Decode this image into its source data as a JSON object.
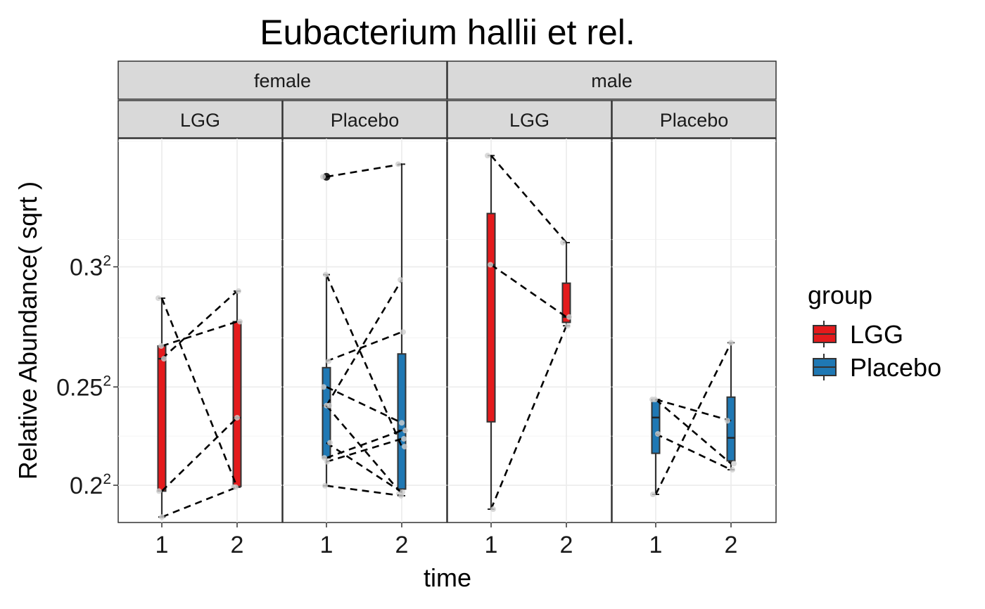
{
  "chart_data": {
    "type": "boxplot",
    "title": "Eubacterium hallii et rel.",
    "xlabel": "time",
    "ylabel": "Relative Abundance( sqrt )",
    "y_scale": "sqrt",
    "ylim": [
      0.1774,
      0.3455
    ],
    "y_ticks": [
      {
        "value": 0.2,
        "label": "0.2",
        "sup": "2"
      },
      {
        "value": 0.25,
        "label": "0.25",
        "sup": "2"
      },
      {
        "value": 0.3,
        "label": "0.3",
        "sup": "2"
      }
    ],
    "x_categories": [
      "1",
      "2"
    ],
    "facet_rows": [
      "female",
      "male"
    ],
    "facet_cols": [
      "LGG",
      "Placebo"
    ],
    "grid": true,
    "legend": {
      "title": "group",
      "position": "right",
      "items": [
        {
          "name": "LGG",
          "color": "#e41a1c"
        },
        {
          "name": "Placebo",
          "color": "#1f78b4"
        }
      ]
    },
    "panels": [
      {
        "sex": "female",
        "group": "LGG",
        "color": "#e41a1c",
        "boxes": [
          {
            "x": "1",
            "min": 0.1809,
            "q1": 0.1966,
            "median": 0.2626,
            "q3": 0.2681,
            "max": 0.2878
          },
          {
            "x": "2",
            "min": 0.1989,
            "q1": 0.1993,
            "median": 0.2355,
            "q3": 0.2783,
            "max": 0.2906
          }
        ],
        "pairs": [
          [
            0.2878,
            0.1989
          ],
          [
            0.2681,
            0.2783
          ],
          [
            0.2626,
            0.2906
          ],
          [
            0.1966,
            0.2355
          ],
          [
            0.1809,
            0.1989
          ]
        ]
      },
      {
        "sex": "female",
        "group": "Placebo",
        "color": "#1f78b4",
        "boxes": [
          {
            "x": "1",
            "min": 0.1997,
            "q1": 0.2151,
            "median": 0.2413,
            "q3": 0.2587,
            "max": 0.297
          },
          {
            "x": "2",
            "min": 0.1939,
            "q1": 0.1978,
            "median": 0.2292,
            "q3": 0.2647,
            "max": 0.3369
          }
        ],
        "outliers": [
          {
            "x": "1",
            "value": 0.3326
          }
        ],
        "pairs": [
          [
            0.3326,
            0.3369
          ],
          [
            0.297,
            0.221
          ],
          [
            0.2615,
            0.274
          ],
          [
            0.25,
            0.233
          ],
          [
            0.2413,
            0.295
          ],
          [
            0.2413,
            0.195
          ],
          [
            0.2151,
            0.2292
          ],
          [
            0.213,
            0.225
          ],
          [
            0.223,
            0.196
          ],
          [
            0.1997,
            0.1939
          ]
        ]
      },
      {
        "sex": "male",
        "group": "LGG",
        "color": "#e41a1c",
        "boxes": [
          {
            "x": "1",
            "min": 0.1858,
            "q1": 0.2335,
            "median": 0.3008,
            "q3": 0.3197,
            "max": 0.3398
          },
          {
            "x": "2",
            "min": 0.2766,
            "q1": 0.278,
            "median": 0.2802,
            "q3": 0.2937,
            "max": 0.3091
          }
        ],
        "pairs": [
          [
            0.3398,
            0.3091
          ],
          [
            0.3008,
            0.2802
          ],
          [
            0.1858,
            0.2766
          ]
        ]
      },
      {
        "sex": "male",
        "group": "Placebo",
        "color": "#1f78b4",
        "boxes": [
          {
            "x": "1",
            "min": 0.1947,
            "q1": 0.2175,
            "median": 0.2356,
            "q3": 0.2442,
            "max": 0.2442
          },
          {
            "x": "2",
            "min": 0.2087,
            "q1": 0.2135,
            "median": 0.2255,
            "q3": 0.2453,
            "max": 0.2695
          }
        ],
        "pairs": [
          [
            0.2442,
            0.234
          ],
          [
            0.2442,
            0.212
          ],
          [
            0.2275,
            0.2087
          ],
          [
            0.1947,
            0.2695
          ]
        ]
      }
    ]
  }
}
